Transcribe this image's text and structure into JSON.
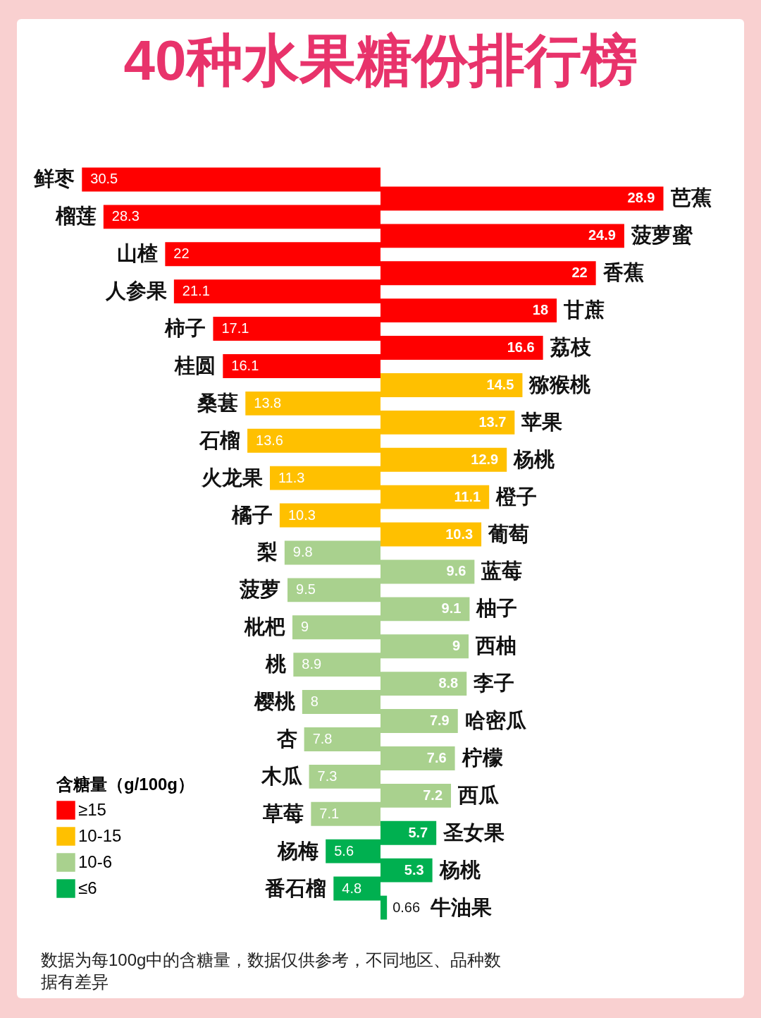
{
  "chart_data": [
    {
      "type": "bar",
      "orientation": "horizontal",
      "title": "40种水果糖份排行榜",
      "legend": "bottom left",
      "legend_title": "含糖量（g/100g）",
      "data_labels": true,
      "tick_labels": false,
      "categories": [
        "鲜枣",
        "榴莲",
        "山楂",
        "人参果",
        "柿子",
        "桂圆",
        "桑葚",
        "石榴",
        "火龙果",
        "橘子",
        "梨",
        "菠萝",
        "枇杷",
        "桃",
        "樱桃",
        "杏",
        "木瓜",
        "草莓",
        "杨梅",
        "番石榴"
      ],
      "series": [
        {
          "name": "≥15",
          "color": "#ff0000",
          "values": [
            30.5,
            28.3,
            22,
            21.1,
            17.1,
            16.1,
            null,
            null,
            null,
            null,
            null,
            null,
            null,
            null,
            null,
            null,
            null,
            null,
            null,
            null
          ]
        },
        {
          "name": "10-15",
          "color": "#ffc000",
          "values": [
            null,
            null,
            null,
            null,
            null,
            null,
            13.8,
            13.6,
            11.3,
            10.3,
            null,
            null,
            null,
            null,
            null,
            null,
            null,
            null,
            null,
            null
          ]
        },
        {
          "name": "10-6",
          "color": "#a9d18e",
          "values": [
            null,
            null,
            null,
            null,
            null,
            null,
            null,
            null,
            null,
            null,
            9.8,
            9.5,
            9,
            8.9,
            8,
            7.8,
            7.3,
            7.1,
            null,
            null
          ]
        },
        {
          "name": "≤6",
          "color": "#00b050",
          "values": [
            null,
            null,
            null,
            null,
            null,
            null,
            null,
            null,
            null,
            null,
            null,
            null,
            null,
            null,
            null,
            null,
            null,
            null,
            5.6,
            4.8
          ]
        }
      ],
      "annotations": [
        "数据为每100g中的含糖量，数据仅供参考，不同地区、品种数据有差异"
      ]
    },
    {
      "type": "bar",
      "orientation": "horizontal",
      "data_labels": true,
      "tick_labels": false,
      "categories": [
        "芭蕉",
        "菠萝蜜",
        "香蕉",
        "甘蔗",
        "荔枝",
        "猕猴桃",
        "苹果",
        "杨桃",
        "橙子",
        "葡萄",
        "蓝莓",
        "柚子",
        "西柚",
        "李子",
        "哈密瓜",
        "柠檬",
        "西瓜",
        "圣女果",
        "杨桃",
        "牛油果"
      ],
      "series": [
        {
          "color": "#ff0000",
          "values": [
            28.9,
            24.9,
            22,
            18,
            16.6,
            null,
            null,
            null,
            null,
            null,
            null,
            null,
            null,
            null,
            null,
            null,
            null,
            null,
            null,
            null
          ]
        },
        {
          "color": "#ffc000",
          "values": [
            null,
            null,
            null,
            null,
            null,
            14.5,
            13.7,
            12.9,
            11.1,
            10.3,
            null,
            null,
            null,
            null,
            null,
            null,
            null,
            null,
            null,
            null
          ]
        },
        {
          "color": "#a9d18e",
          "values": [
            null,
            null,
            null,
            null,
            null,
            null,
            null,
            null,
            null,
            null,
            9.6,
            9.1,
            9,
            8.8,
            7.9,
            7.6,
            7.2,
            null,
            null,
            null
          ]
        },
        {
          "color": "#00b050",
          "values": [
            null,
            null,
            null,
            null,
            null,
            null,
            null,
            null,
            null,
            null,
            null,
            null,
            null,
            null,
            null,
            null,
            null,
            5.7,
            5.3,
            0.66
          ]
        }
      ]
    }
  ]
}
